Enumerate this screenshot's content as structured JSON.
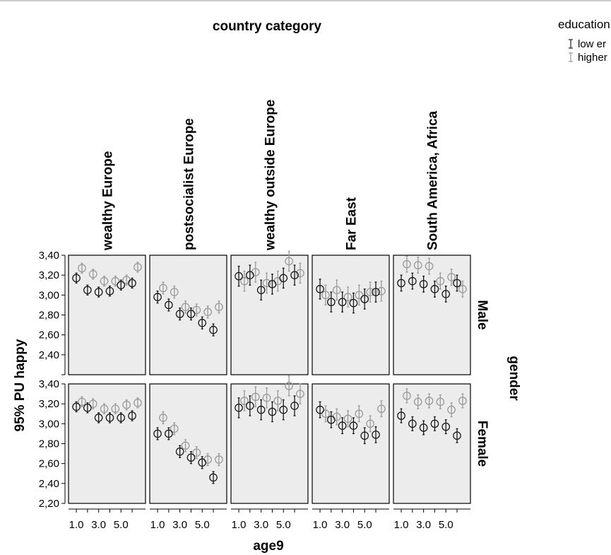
{
  "chart_data": {
    "type": "scatter",
    "title": "country category",
    "ylabel": "95% PU happy",
    "xlabel": "age9",
    "row_title": "gender",
    "legend_title": "education",
    "legend_position": "top-right",
    "ylim": [
      2.2,
      3.4
    ],
    "xlim": [
      0.3,
      7.2
    ],
    "yticks": [
      2.2,
      2.4,
      2.6,
      2.8,
      3.0,
      3.2,
      3.4
    ],
    "ytick_labels": [
      "2,20",
      "2,40",
      "2,60",
      "2,80",
      "3,00",
      "3,20",
      "3,40"
    ],
    "xticks": [
      1,
      2,
      3,
      4,
      5,
      6
    ],
    "xtick_labels": [
      "1.0",
      "3.0",
      "5.0"
    ],
    "grid": false,
    "series_style": {
      "lower": {
        "label": "low er",
        "color": "#1a1a1a"
      },
      "higher": {
        "label": "higher",
        "color": "#9a9a9a"
      }
    },
    "columns": [
      "wealthy Europe",
      "postsocialist Europe",
      "wealthy outside Europe",
      "Far East",
      "South America, Africa"
    ],
    "rows": [
      "Male",
      "Female"
    ],
    "x": [
      1,
      2,
      3,
      4,
      5,
      6
    ],
    "x_offset": 0.5,
    "panels": [
      {
        "row": "Male",
        "column": "wealthy Europe",
        "lower": [
          3.17,
          3.05,
          3.03,
          3.04,
          3.1,
          3.12
        ],
        "higher": [
          3.27,
          3.21,
          3.14,
          3.14,
          3.15,
          3.28
        ],
        "err": 0.05
      },
      {
        "row": "Male",
        "column": "postsocialist Europe",
        "lower": [
          2.98,
          2.9,
          2.81,
          2.81,
          2.72,
          2.65
        ],
        "higher": [
          3.07,
          3.03,
          2.88,
          2.85,
          2.83,
          2.88
        ],
        "err": 0.06
      },
      {
        "row": "Male",
        "column": "wealthy outside Europe",
        "lower": [
          3.19,
          3.2,
          3.05,
          3.11,
          3.17,
          3.2
        ],
        "higher": [
          3.14,
          3.23,
          3.12,
          3.14,
          3.34,
          3.22
        ],
        "err": 0.1
      },
      {
        "row": "Male",
        "column": "Far East",
        "lower": [
          3.06,
          2.93,
          2.93,
          2.92,
          2.96,
          3.03
        ],
        "higher": [
          3.0,
          3.05,
          2.98,
          3.0,
          3.03,
          3.04
        ],
        "err": 0.1
      },
      {
        "row": "Male",
        "column": "South America, Africa",
        "lower": [
          3.12,
          3.14,
          3.11,
          3.06,
          3.01,
          3.12
        ],
        "higher": [
          3.31,
          3.3,
          3.29,
          3.14,
          3.18,
          3.06
        ],
        "err": 0.08
      },
      {
        "row": "Female",
        "column": "wealthy Europe",
        "lower": [
          3.17,
          3.16,
          3.06,
          3.06,
          3.06,
          3.08
        ],
        "higher": [
          3.22,
          3.2,
          3.15,
          3.15,
          3.19,
          3.21
        ],
        "err": 0.05
      },
      {
        "row": "Female",
        "column": "postsocialist Europe",
        "lower": [
          2.9,
          2.9,
          2.72,
          2.66,
          2.61,
          2.46
        ],
        "higher": [
          3.06,
          2.95,
          2.78,
          2.71,
          2.64,
          2.64
        ],
        "err": 0.06
      },
      {
        "row": "Female",
        "column": "wealthy outside Europe",
        "lower": [
          3.16,
          3.18,
          3.14,
          3.12,
          3.14,
          3.18
        ],
        "higher": [
          3.23,
          3.27,
          3.26,
          3.23,
          3.38,
          3.3
        ],
        "err": 0.1
      },
      {
        "row": "Female",
        "column": "Far East",
        "lower": [
          3.14,
          3.04,
          2.98,
          2.98,
          2.88,
          2.89
        ],
        "higher": [
          3.1,
          3.07,
          3.05,
          3.1,
          3.0,
          3.15
        ],
        "err": 0.08
      },
      {
        "row": "Female",
        "column": "South America, Africa",
        "lower": [
          3.08,
          3.0,
          2.96,
          3.0,
          2.97,
          2.88
        ],
        "higher": [
          3.28,
          3.22,
          3.23,
          3.22,
          3.14,
          3.23
        ],
        "err": 0.07
      }
    ]
  }
}
